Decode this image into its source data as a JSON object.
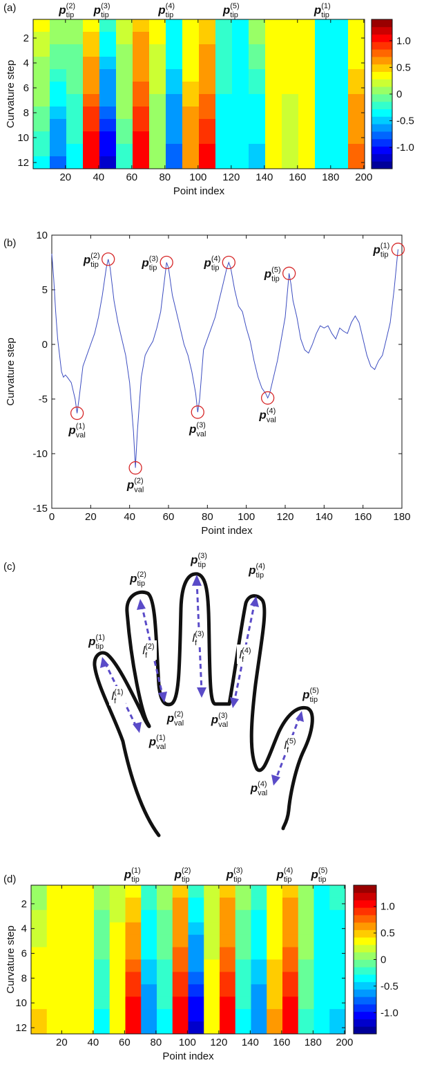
{
  "chart_data": [
    {
      "type": "heatmap",
      "label": "(a)",
      "xlabel": "Point index",
      "ylabel": "Curvature step",
      "colormap": "jet",
      "x_edges": [
        0.5,
        10.5,
        20.5,
        30.5,
        40.5,
        50.5,
        60.5,
        70.5,
        80.5,
        90.5,
        100.5,
        110.5,
        120.5,
        130.5,
        140.5,
        150.5,
        160.5,
        170.5,
        180.5,
        190.5,
        200.5
      ],
      "y": [
        1,
        2,
        3,
        4,
        5,
        6,
        7,
        8,
        9,
        10,
        11,
        12
      ],
      "z": [
        [
          0.3,
          0.1,
          0,
          0.4,
          -0.2,
          0.2,
          0.5,
          0.3,
          -0.3,
          0.3,
          0.5,
          -0.2,
          -0.3,
          0,
          0.3,
          0.3,
          0.3,
          -0.3,
          -0.3,
          0.3
        ],
        [
          0.2,
          0,
          0,
          0.5,
          -0.3,
          0.2,
          0.6,
          0.3,
          -0.3,
          0.3,
          0.5,
          -0.2,
          -0.3,
          0,
          0.3,
          0.3,
          0.3,
          -0.3,
          -0.3,
          0.3
        ],
        [
          0.2,
          -0.1,
          -0.1,
          0.5,
          -0.4,
          0.1,
          0.6,
          0.2,
          -0.4,
          0.4,
          0.6,
          -0.2,
          -0.3,
          -0.1,
          0.3,
          0.3,
          0.3,
          -0.3,
          -0.3,
          0.4
        ],
        [
          0.1,
          -0.1,
          -0.1,
          0.6,
          -0.5,
          0.1,
          0.7,
          0.2,
          -0.4,
          0.4,
          0.6,
          -0.2,
          -0.3,
          -0.1,
          0.3,
          0.3,
          0.3,
          -0.3,
          -0.3,
          0.4
        ],
        [
          0.1,
          -0.2,
          -0.1,
          0.7,
          -0.6,
          0.1,
          0.7,
          0.2,
          -0.5,
          0.4,
          0.7,
          -0.2,
          -0.3,
          -0.2,
          0.3,
          0.3,
          0.3,
          -0.3,
          -0.3,
          0.5
        ],
        [
          0,
          -0.3,
          -0.1,
          0.7,
          -0.7,
          0,
          0.8,
          0.2,
          -0.5,
          0.5,
          0.7,
          -0.2,
          -0.3,
          -0.2,
          0.3,
          0.3,
          0.3,
          -0.3,
          -0.3,
          0.5
        ],
        [
          0,
          -0.4,
          -0.2,
          0.8,
          -0.7,
          0,
          0.8,
          0.1,
          -0.6,
          0.5,
          0.8,
          -0.3,
          -0.4,
          -0.3,
          0.4,
          0.2,
          0.3,
          -0.3,
          -0.3,
          0.6
        ],
        [
          -0.1,
          -0.5,
          -0.2,
          0.9,
          -0.8,
          0,
          0.9,
          0.1,
          -0.6,
          0.6,
          0.8,
          -0.3,
          -0.4,
          -0.3,
          0.4,
          0.2,
          0.3,
          -0.3,
          -0.3,
          0.6
        ],
        [
          -0.1,
          -0.6,
          -0.2,
          0.9,
          -0.9,
          -0.1,
          0.9,
          0.1,
          -0.7,
          0.6,
          0.9,
          -0.3,
          -0.4,
          -0.4,
          0.4,
          0.2,
          0.3,
          -0.3,
          -0.3,
          0.7
        ],
        [
          -0.2,
          -0.6,
          -0.2,
          1.0,
          -1.0,
          -0.1,
          1.0,
          0.1,
          -0.7,
          0.6,
          0.9,
          -0.3,
          -0.4,
          -0.4,
          0.4,
          0.2,
          0.3,
          -0.3,
          -0.3,
          0.7
        ],
        [
          -0.2,
          -0.7,
          -0.3,
          1.0,
          -1.1,
          -0.2,
          1.0,
          0,
          -0.8,
          0.7,
          1.0,
          -0.3,
          -0.4,
          -0.5,
          0.4,
          0.2,
          0.3,
          -0.3,
          -0.3,
          0.8
        ],
        [
          -0.3,
          -0.8,
          -0.3,
          1.1,
          -1.2,
          -0.2,
          1.1,
          0,
          -0.8,
          0.7,
          1.0,
          -0.3,
          -0.4,
          -0.5,
          0.4,
          0.2,
          0.3,
          -0.3,
          -0.3,
          0.8
        ]
      ],
      "xlim": [
        0.5,
        200.5
      ],
      "xticks": [
        20,
        40,
        60,
        80,
        100,
        120,
        140,
        160,
        180,
        200
      ],
      "ylim": [
        12.5,
        0.5
      ],
      "yticks": [
        2,
        4,
        6,
        8,
        10,
        12
      ],
      "zlim": [
        -1.4,
        1.4
      ],
      "cticks": [
        {
          "value": -1,
          "label": "-1.0"
        },
        -0.5,
        0,
        0.5,
        {
          "value": 1,
          "label": "1.0"
        }
      ],
      "annotations": [
        {
          "base": "p",
          "sub": "tip",
          "sup": "(2)",
          "x": 21
        },
        {
          "base": "p",
          "sub": "tip",
          "sup": "(3)",
          "x": 42
        },
        {
          "base": "p",
          "sub": "tip",
          "sup": "(4)",
          "x": 81
        },
        {
          "base": "p",
          "sub": "tip",
          "sup": "(5)",
          "x": 120
        },
        {
          "base": "p",
          "sub": "tip",
          "sup": "(1)",
          "x": 175
        }
      ]
    },
    {
      "type": "line",
      "label": "(b)",
      "xlabel": "Point index",
      "ylabel": "Curvature step",
      "color": "#3b4cc0",
      "x": [
        0,
        1,
        2,
        3,
        4,
        5,
        6,
        7,
        8,
        10,
        12,
        13,
        14,
        16,
        18,
        20,
        22,
        24,
        26,
        28,
        29,
        30,
        32,
        34,
        36,
        38,
        40,
        42,
        43,
        44,
        46,
        48,
        50,
        52,
        54,
        56,
        58,
        59,
        60,
        62,
        64,
        66,
        68,
        70,
        72,
        74,
        75,
        76,
        78,
        80,
        82,
        84,
        86,
        88,
        90,
        91,
        92,
        94,
        96,
        98,
        100,
        102,
        104,
        106,
        108,
        110,
        111,
        112,
        114,
        116,
        118,
        120,
        122,
        123,
        124,
        126,
        128,
        130,
        132,
        134,
        136,
        138,
        140,
        142,
        144,
        146,
        148,
        150,
        152,
        154,
        156,
        158,
        160,
        162,
        164,
        166,
        168,
        170,
        172,
        174,
        176,
        178
      ],
      "values": [
        8.3,
        6,
        3,
        0.5,
        -1,
        -2.5,
        -3,
        -2.8,
        -3,
        -3.5,
        -5,
        -6.3,
        -5,
        -2,
        -1,
        0,
        1,
        2.5,
        4.5,
        7,
        7.8,
        7,
        4,
        2,
        0.5,
        -1,
        -3.5,
        -8,
        -11.3,
        -8,
        -3,
        -1,
        -0.3,
        0.3,
        1.5,
        3,
        6,
        7.5,
        7,
        4.5,
        3,
        1.5,
        0,
        -1,
        -2.5,
        -4.5,
        -6.2,
        -5,
        -0.5,
        0.5,
        1.5,
        2.5,
        4,
        5.5,
        7,
        7.5,
        7,
        5,
        3.5,
        3,
        1.5,
        0.3,
        -1.5,
        -3,
        -4,
        -4.5,
        -4.9,
        -4.5,
        -3,
        -1.5,
        0.5,
        2.5,
        6.5,
        5.5,
        4,
        2.5,
        0.5,
        -0.5,
        -0.8,
        0,
        1,
        1.7,
        1.5,
        1.7,
        1,
        0.5,
        1.5,
        1.2,
        1,
        2,
        2.6,
        2,
        0.5,
        -1,
        -2,
        -2.3,
        -1.5,
        -1,
        0.5,
        2,
        5,
        8.7
      ],
      "xlim": [
        0,
        180
      ],
      "xticks": [
        0,
        20,
        40,
        60,
        80,
        100,
        120,
        140,
        160,
        180
      ],
      "ylim": [
        -15,
        10
      ],
      "yticks": [
        -15,
        -10,
        -5,
        0,
        5,
        10
      ],
      "marker_color": "#d62728",
      "markers": [
        {
          "x": 29,
          "y": 7.8,
          "base": "p",
          "sub": "tip",
          "sup": "(2)"
        },
        {
          "x": 59,
          "y": 7.5,
          "base": "p",
          "sub": "tip",
          "sup": "(3)"
        },
        {
          "x": 91,
          "y": 7.5,
          "base": "p",
          "sub": "tip",
          "sup": "(4)"
        },
        {
          "x": 122,
          "y": 6.5,
          "base": "p",
          "sub": "tip",
          "sup": "(5)"
        },
        {
          "x": 178,
          "y": 8.7,
          "base": "p",
          "sub": "tip",
          "sup": "(1)"
        },
        {
          "x": 13,
          "y": -6.3,
          "base": "p",
          "sub": "val",
          "sup": "(1)"
        },
        {
          "x": 43,
          "y": -11.3,
          "base": "p",
          "sub": "val",
          "sup": "(2)"
        },
        {
          "x": 75,
          "y": -6.2,
          "base": "p",
          "sub": "val",
          "sup": "(3)"
        },
        {
          "x": 111,
          "y": -4.9,
          "base": "p",
          "sub": "val",
          "sup": "(4)"
        }
      ]
    },
    {
      "type": "heatmap",
      "label": "(d)",
      "xlabel": "Point index",
      "ylabel": "Curvature step",
      "colormap": "jet",
      "x_edges": [
        0.5,
        10.5,
        20.5,
        30.5,
        40.5,
        50.5,
        60.5,
        70.5,
        80.5,
        90.5,
        100.5,
        110.5,
        120.5,
        130.5,
        140.5,
        150.5,
        160.5,
        170.5,
        180.5,
        190.5,
        200.5
      ],
      "y": [
        1,
        2,
        3,
        4,
        5,
        6,
        7,
        8,
        9,
        10,
        11,
        12
      ],
      "z": [
        [
          0.1,
          0.3,
          0.3,
          0.3,
          0,
          0.2,
          0.4,
          -0.2,
          0,
          0.5,
          -0.2,
          0.2,
          0.5,
          0,
          -0.2,
          0.3,
          0.5,
          0.1,
          -0.3,
          -0.2
        ],
        [
          0.1,
          0.3,
          0.3,
          0.3,
          0,
          0.2,
          0.5,
          -0.2,
          0,
          0.6,
          -0.3,
          0.2,
          0.6,
          0,
          -0.2,
          0.3,
          0.6,
          0.1,
          -0.3,
          -0.2
        ],
        [
          0.2,
          0.3,
          0.3,
          0.3,
          -0.1,
          0.2,
          0.5,
          -0.3,
          -0.1,
          0.6,
          -0.4,
          0.2,
          0.6,
          -0.1,
          -0.3,
          0.4,
          0.6,
          0,
          -0.3,
          -0.3
        ],
        [
          0.2,
          0.3,
          0.3,
          0.3,
          -0.1,
          0.3,
          0.6,
          -0.3,
          -0.1,
          0.7,
          -0.5,
          0.2,
          0.7,
          -0.1,
          -0.3,
          0.4,
          0.7,
          0,
          -0.3,
          -0.3
        ],
        [
          0.2,
          0.3,
          0.3,
          0.3,
          -0.1,
          0.3,
          0.7,
          -0.4,
          -0.1,
          0.7,
          -0.6,
          0.2,
          0.7,
          -0.1,
          -0.4,
          0.4,
          0.7,
          0,
          -0.3,
          -0.3
        ],
        [
          0.3,
          0.3,
          0.3,
          0.3,
          -0.1,
          0.3,
          0.7,
          -0.4,
          -0.1,
          0.8,
          -0.7,
          0.2,
          0.8,
          -0.1,
          -0.4,
          0.4,
          0.8,
          0,
          -0.3,
          -0.3
        ],
        [
          0.3,
          0.3,
          0.3,
          0.3,
          -0.2,
          0.3,
          0.8,
          -0.5,
          -0.2,
          0.8,
          -0.7,
          0.3,
          0.8,
          -0.2,
          -0.5,
          0.5,
          0.8,
          -0.1,
          -0.3,
          -0.4
        ],
        [
          0.4,
          0.3,
          0.3,
          0.3,
          -0.2,
          0.3,
          0.9,
          -0.5,
          -0.2,
          0.9,
          -0.8,
          0.3,
          0.9,
          -0.2,
          -0.5,
          0.5,
          0.9,
          -0.1,
          -0.3,
          -0.4
        ],
        [
          0.4,
          0.3,
          0.3,
          0.3,
          -0.2,
          0.3,
          0.9,
          -0.6,
          -0.2,
          0.9,
          -0.9,
          0.3,
          0.9,
          -0.2,
          -0.6,
          0.5,
          0.9,
          -0.1,
          -0.3,
          -0.4
        ],
        [
          0.4,
          0.3,
          0.3,
          0.3,
          -0.2,
          0.4,
          1.0,
          -0.6,
          -0.2,
          1.0,
          -1.0,
          0.3,
          1.0,
          -0.2,
          -0.6,
          0.5,
          1.0,
          -0.1,
          -0.3,
          -0.4
        ],
        [
          0.5,
          0.3,
          0.3,
          0.3,
          -0.3,
          0.4,
          1.0,
          -0.7,
          -0.3,
          1.0,
          -1.1,
          0.3,
          1.0,
          -0.3,
          -0.7,
          0.6,
          1.0,
          -0.2,
          -0.3,
          -0.5
        ],
        [
          0.5,
          0.3,
          0.3,
          0.3,
          -0.3,
          0.4,
          1.1,
          -0.7,
          -0.3,
          1.1,
          -1.2,
          0.3,
          1.1,
          -0.3,
          -0.7,
          0.6,
          1.1,
          -0.2,
          -0.3,
          -0.5
        ]
      ],
      "xlim": [
        0.5,
        200.5
      ],
      "xticks": [
        20,
        40,
        60,
        80,
        100,
        120,
        140,
        160,
        180,
        200
      ],
      "ylim": [
        12.5,
        0.5
      ],
      "yticks": [
        2,
        4,
        6,
        8,
        10,
        12
      ],
      "zlim": [
        -1.4,
        1.4
      ],
      "cticks": [
        {
          "value": -1,
          "label": "-1.0"
        },
        -0.5,
        0,
        0.5,
        {
          "value": 1,
          "label": "1.0"
        }
      ],
      "annotations": [
        {
          "base": "p",
          "sub": "tip",
          "sup": "(1)",
          "x": 65
        },
        {
          "base": "p",
          "sub": "tip",
          "sup": "(2)",
          "x": 97
        },
        {
          "base": "p",
          "sub": "tip",
          "sup": "(3)",
          "x": 130
        },
        {
          "base": "p",
          "sub": "tip",
          "sup": "(4)",
          "x": 162
        },
        {
          "base": "p",
          "sub": "tip",
          "sup": "(5)",
          "x": 184
        }
      ]
    }
  ],
  "diagram": {
    "label": "(c)",
    "tips": [
      {
        "base": "p",
        "sub": "tip",
        "sup": "(1)"
      },
      {
        "base": "p",
        "sub": "tip",
        "sup": "(2)"
      },
      {
        "base": "p",
        "sub": "tip",
        "sup": "(3)"
      },
      {
        "base": "p",
        "sub": "tip",
        "sup": "(4)"
      },
      {
        "base": "p",
        "sub": "tip",
        "sup": "(5)"
      }
    ],
    "valleys": [
      {
        "base": "p",
        "sub": "val",
        "sup": "(1)"
      },
      {
        "base": "p",
        "sub": "val",
        "sup": "(2)"
      },
      {
        "base": "p",
        "sub": "val",
        "sup": "(3)"
      },
      {
        "base": "p",
        "sub": "val",
        "sup": "(4)"
      }
    ],
    "lengths": [
      {
        "base": "l",
        "sub": "f",
        "sup": "(1)"
      },
      {
        "base": "l",
        "sub": "f",
        "sup": "(2)"
      },
      {
        "base": "l",
        "sub": "f",
        "sup": "(3)"
      },
      {
        "base": "l",
        "sub": "f",
        "sup": "(4)"
      },
      {
        "base": "l",
        "sub": "f",
        "sup": "(5)"
      }
    ]
  }
}
